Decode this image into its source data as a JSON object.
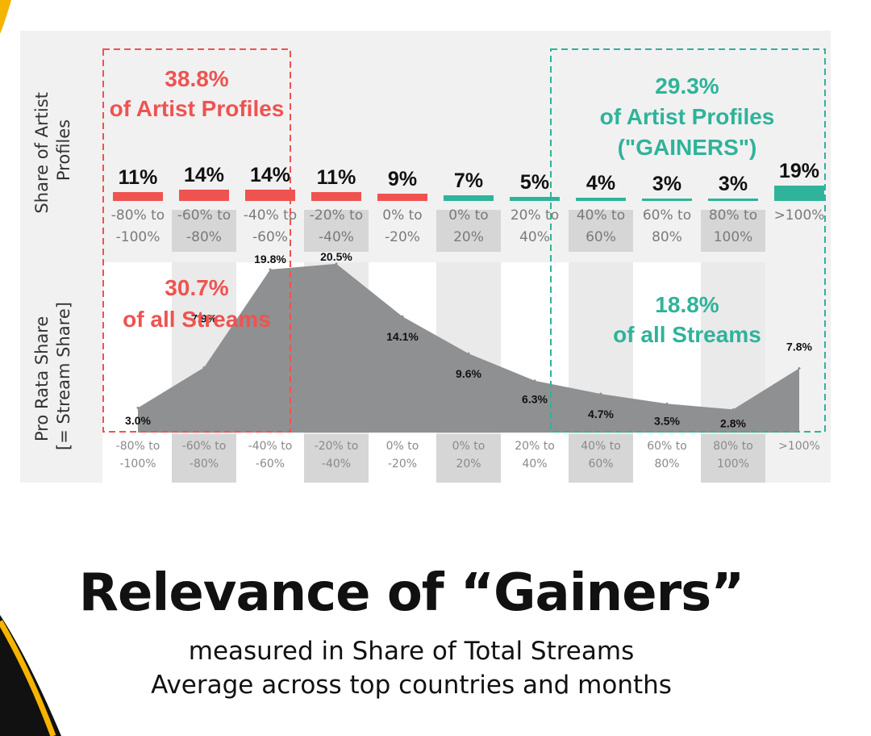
{
  "colors": {
    "red": "#ef5350",
    "teal": "#2fb39a",
    "area": "#8e9092",
    "band": "#d6d6d6",
    "panel": "#f1f1f1",
    "accent": "#f5b400"
  },
  "headline": "Relevance of “Gainers”",
  "subtitle_line1": "measured in Share of Total Streams",
  "subtitle_line2": "Average across top countries and months",
  "chart_data": [
    {
      "type": "bar",
      "ylabel": [
        "Share of Artist",
        "Profiles"
      ],
      "categories": [
        [
          "-80% to",
          "-100%"
        ],
        [
          "-60% to",
          "-80%"
        ],
        [
          "-40% to",
          "-60%"
        ],
        [
          "-20% to",
          "-40%"
        ],
        [
          "0% to",
          "-20%"
        ],
        [
          "0% to",
          "20%"
        ],
        [
          "20% to",
          "40%"
        ],
        [
          "40% to",
          "60%"
        ],
        [
          "60% to",
          "80%"
        ],
        [
          "80% to",
          "100%"
        ],
        [
          ">100%"
        ]
      ],
      "values": [
        11,
        14,
        14,
        11,
        9,
        7,
        5,
        4,
        3,
        3,
        19
      ],
      "labels": [
        "11%",
        "14%",
        "14%",
        "11%",
        "9%",
        "7%",
        "5%",
        "4%",
        "3%",
        "3%",
        "19%"
      ],
      "bar_colors": [
        "red",
        "red",
        "red",
        "red",
        "red",
        "teal",
        "teal",
        "teal",
        "teal",
        "teal",
        "teal"
      ],
      "annotations": {
        "red": {
          "line1": "38.8%",
          "line2": "of Artist Profiles"
        },
        "teal": {
          "line1": "29.3%",
          "line2": "of Artist Profiles",
          "line3": "(\"GAINERS\")"
        }
      }
    },
    {
      "type": "area",
      "ylabel": [
        "Pro Rata Share",
        "[= Stream Share]"
      ],
      "categories": [
        [
          "-80% to",
          "-100%"
        ],
        [
          "-60% to",
          "-80%"
        ],
        [
          "-40% to",
          "-60%"
        ],
        [
          "-20% to",
          "-40%"
        ],
        [
          "0% to",
          "-20%"
        ],
        [
          "0% to",
          "20%"
        ],
        [
          "20% to",
          "40%"
        ],
        [
          "40% to",
          "60%"
        ],
        [
          "60% to",
          "80%"
        ],
        [
          "80% to",
          "100%"
        ],
        [
          ">100%"
        ]
      ],
      "values": [
        3.0,
        7.9,
        19.8,
        20.5,
        14.1,
        9.6,
        6.3,
        4.7,
        3.5,
        2.8,
        7.8
      ],
      "labels": [
        "3.0%",
        "7.9%",
        "19.8%",
        "20.5%",
        "14.1%",
        "9.6%",
        "6.3%",
        "4.7%",
        "3.5%",
        "2.8%",
        "7.8%"
      ],
      "annotations": {
        "red": {
          "line1": "30.7%",
          "line2": "of all Streams"
        },
        "teal": {
          "line1": "18.8%",
          "line2": "of all Streams"
        }
      }
    }
  ]
}
